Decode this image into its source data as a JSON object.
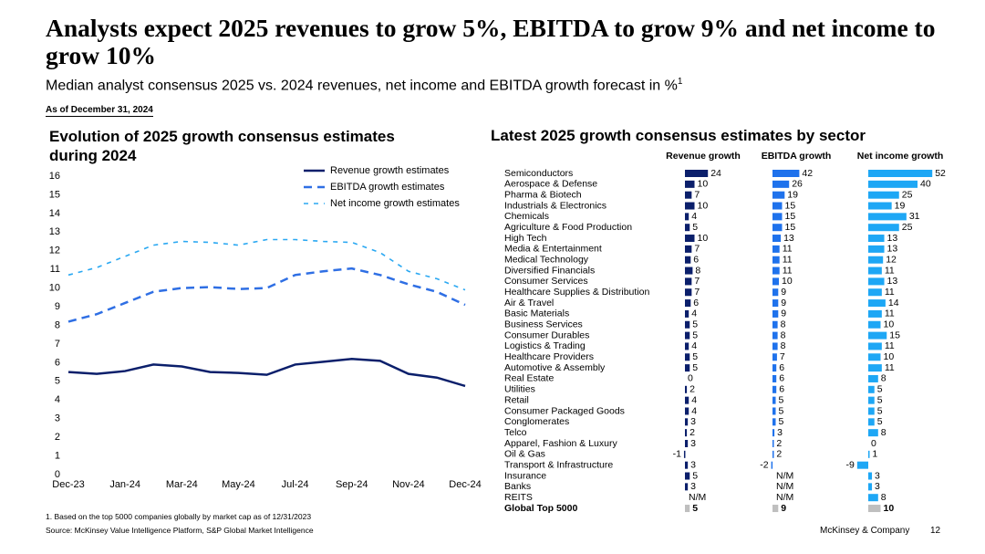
{
  "header": {
    "title": "Analysts expect 2025 revenues to grow 5%, EBITDA to grow 9% and net income to grow 10%",
    "subtitle": "Median analyst consensus 2025 vs. 2024 revenues, net income and EBITDA growth forecast in %",
    "subtitle_sup": "1",
    "as_of": "As of December 31, 2024"
  },
  "chart_data": [
    {
      "type": "line",
      "title": "Evolution of 2025 growth consensus estimates during 2024",
      "categories": [
        "Dec-23",
        null,
        "Jan-24",
        null,
        "Mar-24",
        null,
        "May-24",
        null,
        "Jul-24",
        null,
        "Sep-24",
        null,
        "Nov-24",
        null,
        "Dec-24"
      ],
      "ylim": [
        0,
        16
      ],
      "yticks": [
        0,
        1,
        2,
        3,
        4,
        5,
        6,
        7,
        8,
        9,
        10,
        11,
        12,
        13,
        14,
        15,
        16
      ],
      "grid": false,
      "legend": "top-right",
      "series": [
        {
          "name": "Revenue growth estimates",
          "color": "#0b1f6b",
          "line_style": "solid",
          "values": [
            5.5,
            5.4,
            5.55,
            5.9,
            5.8,
            5.5,
            5.45,
            5.35,
            5.9,
            6.05,
            6.2,
            6.1,
            5.4,
            5.2,
            4.75
          ]
        },
        {
          "name": "EBITDA growth estimates",
          "color": "#2f6fe4",
          "line_style": "dashed",
          "values": [
            8.2,
            8.6,
            9.2,
            9.8,
            10.0,
            10.05,
            9.95,
            10.0,
            10.7,
            10.9,
            11.05,
            10.7,
            10.2,
            9.8,
            9.1
          ]
        },
        {
          "name": "Net income growth estimates",
          "color": "#2aa8f2",
          "line_style": "dotted",
          "values": [
            10.7,
            11.1,
            11.7,
            12.3,
            12.5,
            12.45,
            12.3,
            12.6,
            12.6,
            12.5,
            12.45,
            11.9,
            10.9,
            10.5,
            9.9
          ]
        }
      ]
    },
    {
      "type": "bar",
      "orientation": "horizontal",
      "title": "Latest 2025 growth consensus estimates by sector",
      "categories": [
        "Semiconductors",
        "Aerospace & Defense",
        "Pharma & Biotech",
        "Industrials & Electronics",
        "Chemicals",
        "Agriculture & Food Production",
        "High Tech",
        "Media & Entertainment",
        "Medical Technology",
        "Diversified Financials",
        "Consumer Services",
        "Healthcare Supplies & Distribution",
        "Air & Travel",
        "Basic Materials",
        "Business Services",
        "Consumer Durables",
        "Logistics & Trading",
        "Healthcare Providers",
        "Automotive & Assembly",
        "Real Estate",
        "Utilities",
        "Retail",
        "Consumer Packaged Goods",
        "Conglomerates",
        "Telco",
        "Apparel, Fashion & Luxury",
        "Oil & Gas",
        "Transport & Infrastructure",
        "Insurance",
        "Banks",
        "REITS",
        "Global Top 5000"
      ],
      "highlight_index": 31,
      "highlight_color": "#bfbfbf",
      "series": [
        {
          "name": "Revenue growth",
          "color": "#0b1f6b",
          "values": [
            24,
            10,
            7,
            10,
            4,
            5,
            10,
            7,
            6,
            8,
            7,
            7,
            6,
            4,
            5,
            5,
            4,
            5,
            5,
            0,
            2,
            4,
            4,
            3,
            2,
            3,
            -1,
            3,
            5,
            3,
            null,
            5
          ],
          "value_labels": [
            null,
            null,
            null,
            null,
            null,
            null,
            null,
            null,
            null,
            null,
            null,
            null,
            null,
            null,
            null,
            null,
            null,
            null,
            null,
            null,
            null,
            null,
            null,
            null,
            null,
            null,
            null,
            null,
            null,
            null,
            "N/M",
            null
          ]
        },
        {
          "name": "EBITDA growth",
          "color": "#1f72ec",
          "values": [
            42,
            26,
            19,
            15,
            15,
            15,
            13,
            11,
            11,
            11,
            10,
            9,
            9,
            9,
            8,
            8,
            8,
            7,
            6,
            6,
            6,
            5,
            5,
            5,
            3,
            2,
            2,
            -2,
            null,
            null,
            null,
            9
          ],
          "value_labels": [
            null,
            null,
            null,
            null,
            null,
            null,
            null,
            null,
            null,
            null,
            null,
            null,
            null,
            null,
            null,
            null,
            null,
            null,
            null,
            null,
            null,
            null,
            null,
            null,
            null,
            null,
            null,
            null,
            "N/M",
            "N/M",
            "N/M",
            null
          ]
        },
        {
          "name": "Net income growth",
          "color": "#1ea7f5",
          "values": [
            52,
            40,
            25,
            19,
            31,
            25,
            13,
            13,
            12,
            11,
            13,
            11,
            14,
            11,
            10,
            15,
            11,
            10,
            11,
            8,
            5,
            5,
            5,
            5,
            8,
            0,
            1,
            -9,
            3,
            3,
            8,
            10
          ]
        }
      ]
    }
  ],
  "footer": {
    "footnote": "1. Based on the top 5000 companies globally by market cap as of 12/31/2023",
    "source": "Source: McKinsey Value Intelligence Platform, S&P Global Market Intelligence",
    "company": "McKinsey & Company",
    "page": "12"
  }
}
